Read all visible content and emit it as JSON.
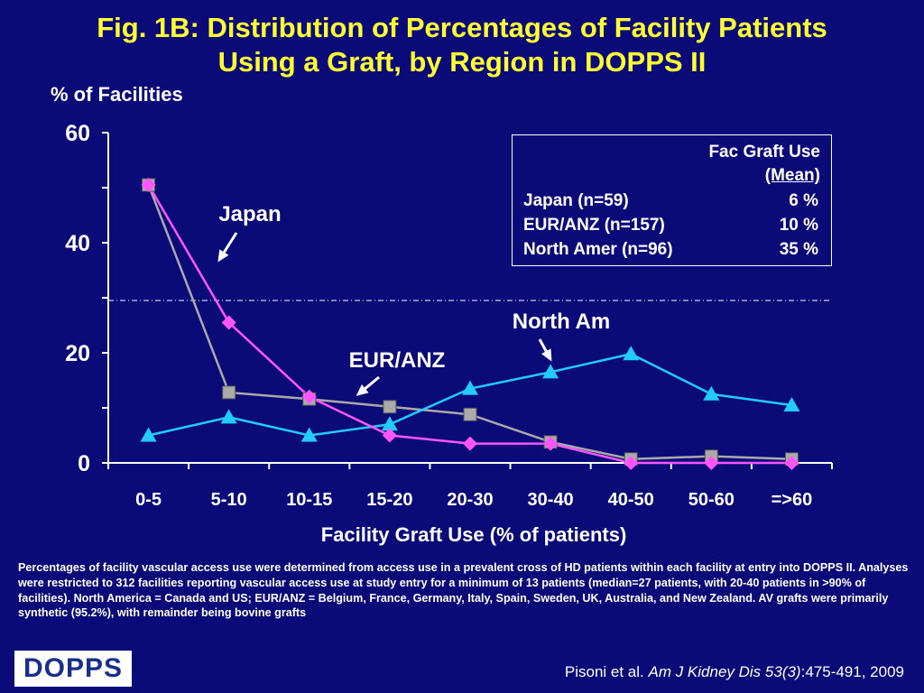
{
  "title_line1": "Fig. 1B: Distribution of Percentages of Facility Patients",
  "title_line2": "Using a Graft, by Region in DOPPS II",
  "chart_data": {
    "type": "line",
    "ylabel": "% of Facilities",
    "xlabel": "Facility Graft Use (% of patients)",
    "categories": [
      "0-5",
      "5-10",
      "10-15",
      "15-20",
      "20-30",
      "30-40",
      "40-50",
      "50-60",
      "=>60"
    ],
    "ylim": [
      0,
      60
    ],
    "yticks": [
      0,
      20,
      40,
      60
    ],
    "reference_line": 29.5,
    "series": [
      {
        "name": "Japan",
        "color": "#ff55ff",
        "marker": "diamond",
        "values": [
          50.5,
          25.5,
          12,
          5,
          3.5,
          3.5,
          0,
          0,
          0
        ]
      },
      {
        "name": "EUR/ANZ",
        "color": "#aaaaaa",
        "marker": "square",
        "values": [
          50.5,
          12.8,
          11.6,
          10.2,
          8.8,
          3.8,
          0.7,
          1.2,
          0.7
        ]
      },
      {
        "name": "North Am",
        "color": "#22ccff",
        "marker": "triangle",
        "values": [
          5,
          8.3,
          5,
          7,
          13.5,
          16.5,
          19.8,
          12.5,
          10.5
        ]
      }
    ],
    "annotations": [
      "Japan",
      "EUR/ANZ",
      "North Am"
    ]
  },
  "legend": {
    "header1": "Fac Graft Use",
    "header2": "(Mean)",
    "rows": [
      {
        "name": "Japan (n=59)",
        "value": "6 %"
      },
      {
        "name": "EUR/ANZ (n=157)",
        "value": "10 %"
      },
      {
        "name": "North Amer (n=96)",
        "value": "35 %"
      }
    ]
  },
  "footnote": "Percentages of facility vascular access use were determined from access use in a prevalent cross of HD patients within each facility at entry into DOPPS II. Analyses were restricted to 312 facilities reporting vascular access use at study entry for a minimum of 13 patients (median=27 patients, with 20-40 patients in >90% of facilities). North America = Canada and US; EUR/ANZ = Belgium, France, Germany, Italy, Spain, Sweden, UK, Australia, and New Zealand. AV grafts were primarily synthetic (95.2%), with remainder being bovine grafts",
  "logo_text": "DOPPS",
  "citation": {
    "authors": "Pisoni et al. ",
    "journal": "Am J Kidney Dis 53(3)",
    "pages": ":475-491, 2009"
  }
}
